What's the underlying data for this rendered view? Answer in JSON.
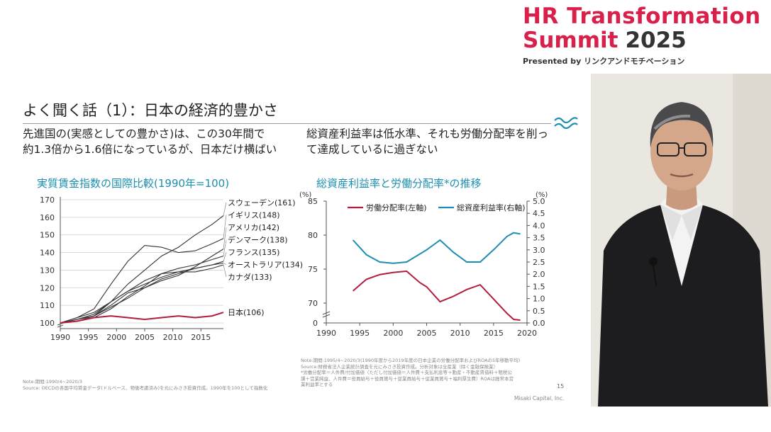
{
  "brand": {
    "line1": "HR Transformation",
    "line2": "Summit",
    "year": "2025",
    "presented_by": "Presented by リンクアンドモチベーション",
    "color": "#d9204b"
  },
  "slide": {
    "title": "よく聞く話（1）：日本の経済的豊かさ",
    "left_text": "先進国の(実感としての豊かさ)は、この30年間で\n約1.3倍から1.6倍になっているが、日本だけ横ばい",
    "right_text": "総資産利益率は低水準、それも労働分配率を削っ\nて達成しているに過ぎない",
    "left_note": "Note:期間:1990/4~2020/3\nSource: OECDの各国平均賃金データ(ドルベース、物価考慮済み)を元にみさき投資作成。1990年を100として指数化",
    "right_note": "Note:期間:1995/4~2020/3(1990年度から2019年度の日本企業の労働分配率およびROAの5年移動平均)\nSource:財務省法人企業統計調査を元にみさき投資作成。分析対象は全産業（除く金融保険業）\n*労働分配率＝人件費/付加価値（ただし付加価値＝人件費＋支払利息等＋動産・不動産賃借料＋租税公\n課＋営業純益、人件費＝役員給与＋役員賞与＋従業員給与＋従業員賞与＋福利厚生費）ROAは経常本営\n業利益率とする",
    "page_number": "15",
    "credit": "Misaki Capital, Inc.",
    "accent_color": "#1c8fb0"
  },
  "chart_data": [
    {
      "type": "line",
      "title": "実質賃金指数の国際比較(1990年=100)",
      "xlim": [
        1990,
        2019
      ],
      "ylim": [
        100,
        170
      ],
      "x_ticks": [
        "1990",
        "1995",
        "2000",
        "2005",
        "2010",
        "2015"
      ],
      "y_ticks": [
        "100",
        "110",
        "120",
        "130",
        "140",
        "150",
        "160",
        "170"
      ],
      "grid": "horizontal",
      "x": [
        1990,
        1993,
        1996,
        1999,
        2002,
        2005,
        2008,
        2011,
        2014,
        2017,
        2019
      ],
      "series": [
        {
          "name": "スウェーデン(161)",
          "color": "#333333",
          "values": [
            100,
            101,
            104,
            112,
            122,
            130,
            138,
            143,
            150,
            156,
            161
          ]
        },
        {
          "name": "イギリス(148)",
          "color": "#333333",
          "values": [
            100,
            103,
            108,
            122,
            135,
            144,
            143,
            140,
            141,
            145,
            148
          ]
        },
        {
          "name": "アメリカ(142)",
          "color": "#333333",
          "values": [
            100,
            102,
            104,
            110,
            117,
            120,
            124,
            127,
            132,
            138,
            142
          ]
        },
        {
          "name": "デンマーク(138)",
          "color": "#333333",
          "values": [
            100,
            103,
            106,
            112,
            118,
            124,
            128,
            131,
            133,
            136,
            138
          ]
        },
        {
          "name": "フランス(135)",
          "color": "#333333",
          "values": [
            100,
            102,
            105,
            112,
            118,
            122,
            126,
            129,
            131,
            133,
            135
          ]
        },
        {
          "name": "オーストラリア(134)",
          "color": "#333333",
          "values": [
            100,
            102,
            104,
            109,
            114,
            120,
            125,
            128,
            131,
            133,
            134
          ]
        },
        {
          "name": "カナダ(133)",
          "color": "#333333",
          "values": [
            100,
            101,
            103,
            108,
            115,
            121,
            128,
            129,
            129,
            131,
            133
          ]
        },
        {
          "name": "日本(106)",
          "color": "#b01e3c",
          "values": [
            100,
            101,
            103,
            104,
            103,
            102,
            103,
            104,
            103,
            104,
            106
          ]
        }
      ]
    },
    {
      "type": "line",
      "title": "総資産利益率と労働分配率*の推移",
      "xlim": [
        1990,
        2020
      ],
      "x_ticks": [
        "1990",
        "1995",
        "2000",
        "2005",
        "2010",
        "2015",
        "2020"
      ],
      "y_left_unit": "(%)",
      "y_right_unit": "(%)",
      "y_left_ticks": [
        "0",
        "70",
        "75",
        "80",
        "85"
      ],
      "y_right_ticks": [
        "0.0",
        "0.5",
        "1.0",
        "1.5",
        "2.0",
        "2.5",
        "3.0",
        "3.5",
        "4.0",
        "4.5",
        "5.0"
      ],
      "ylim_right": [
        0,
        5
      ],
      "legend": "top",
      "series": [
        {
          "name": "労働分配率(左軸)",
          "axis": "left",
          "color": "#b01e3c",
          "x": [
            1994,
            1996,
            1998,
            2000,
            2002,
            2004,
            2005,
            2007,
            2009,
            2011,
            2013,
            2015,
            2017,
            2018,
            2019
          ],
          "values": [
            71.8,
            73.5,
            74.2,
            74.5,
            74.7,
            73.0,
            72.4,
            70.2,
            71.0,
            72.0,
            72.7,
            70.6,
            68.5,
            67.6,
            67.5
          ]
        },
        {
          "name": "総資産利益率(右軸)",
          "axis": "right",
          "color": "#1c8fb0",
          "x": [
            1994,
            1996,
            1998,
            2000,
            2002,
            2005,
            2007,
            2009,
            2011,
            2013,
            2015,
            2017,
            2018,
            2019
          ],
          "values": [
            3.4,
            2.8,
            2.5,
            2.45,
            2.5,
            3.0,
            3.4,
            2.9,
            2.5,
            2.5,
            3.0,
            3.55,
            3.7,
            3.65
          ]
        }
      ]
    }
  ]
}
